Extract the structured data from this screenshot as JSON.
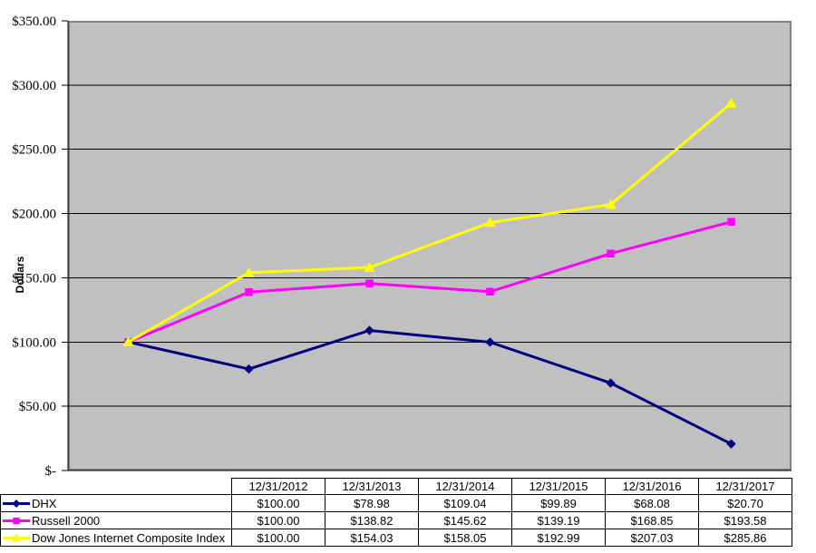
{
  "window": {
    "background": "#ffffff"
  },
  "colors": {
    "plot_bg": "#c0c0c0",
    "plot_border": "#808080",
    "gridline": "#000000",
    "axis": "#000000",
    "text": "#000000",
    "table_border": "#000000"
  },
  "y_axis": {
    "title": "Dollars",
    "tick_labels": [
      "$350.00",
      "$300.00",
      "$250.00",
      "$200.00",
      "$150.00",
      "$100.00",
      "$50.00",
      "$-"
    ]
  },
  "chart_data": {
    "type": "line",
    "title": "",
    "categories": [
      "12/31/2012",
      "12/31/2013",
      "12/31/2014",
      "12/31/2015",
      "12/31/2016",
      "12/31/2017"
    ],
    "series": [
      {
        "name": "DHX",
        "color": "#000080",
        "marker": "diamond",
        "values": [
          100.0,
          78.98,
          109.04,
          99.89,
          68.08,
          20.7
        ]
      },
      {
        "name": "Russell 2000",
        "color": "#ff00ff",
        "marker": "square",
        "values": [
          100.0,
          138.82,
          145.62,
          139.19,
          168.85,
          193.58
        ]
      },
      {
        "name": "Dow Jones Internet Composite Index",
        "color": "#ffff00",
        "marker": "triangle",
        "values": [
          100.0,
          154.03,
          158.05,
          192.99,
          207.03,
          285.86
        ]
      }
    ],
    "xlabel": "",
    "ylabel": "Dollars",
    "ylim": [
      0,
      350
    ],
    "ytick_step": 50,
    "grid": true,
    "plot_bg": "#c0c0c0",
    "legend_position": "table-below"
  },
  "table": {
    "corner_label": "",
    "headers": [
      "12/31/2012",
      "12/31/2013",
      "12/31/2014",
      "12/31/2015",
      "12/31/2016",
      "12/31/2017"
    ],
    "rows": [
      {
        "label": "DHX",
        "values": [
          "$100.00",
          "$78.98",
          "$109.04",
          "$99.89",
          "$68.08",
          "$20.70"
        ]
      },
      {
        "label": "Russell 2000",
        "values": [
          "$100.00",
          "$138.82",
          "$145.62",
          "$139.19",
          "$168.85",
          "$193.58"
        ]
      },
      {
        "label": "Dow Jones Internet Composite Index",
        "values": [
          "$100.00",
          "$154.03",
          "$158.05",
          "$192.99",
          "$207.03",
          "$285.86"
        ]
      }
    ]
  }
}
